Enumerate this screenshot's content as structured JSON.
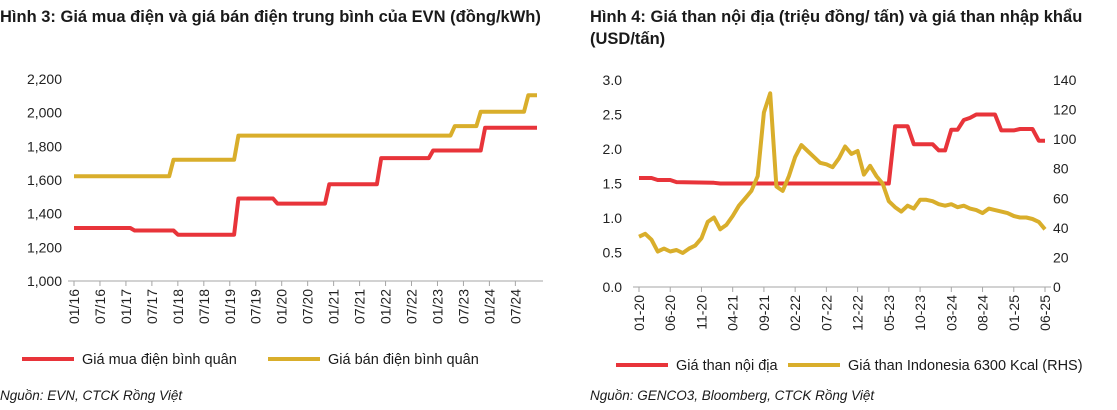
{
  "colors": {
    "red": "#e8343a",
    "gold": "#d9ae2b",
    "axis": "#a6a6a6"
  },
  "left": {
    "title": "Hình 3: Giá mua điện và giá bán điện trung bình của EVN (đồng/kWh)",
    "source": "Nguồn: EVN, CTCK Rồng Việt",
    "chart_data": {
      "type": "line",
      "ylim": [
        1000,
        2200
      ],
      "yticks": [
        "1,000",
        "1,200",
        "1,400",
        "1,600",
        "1,800",
        "2,000",
        "2,200"
      ],
      "x_range": [
        "2016-01",
        "2024-12"
      ],
      "categories": [
        "01/16",
        "07/16",
        "01/17",
        "07/17",
        "01/18",
        "07/18",
        "01/19",
        "07/19",
        "01/20",
        "07/20",
        "01/21",
        "07/21",
        "01/22",
        "07/22",
        "01/23",
        "07/23",
        "01/24",
        "07/24"
      ],
      "series": [
        {
          "name": "Giá mua điện bình quân",
          "color": "#e8343a",
          "points": [
            [
              "2016-01",
              1315
            ],
            [
              "2017-02",
              1315
            ],
            [
              "2017-03",
              1300
            ],
            [
              "2017-12",
              1300
            ],
            [
              "2018-01",
              1275
            ],
            [
              "2019-02",
              1275
            ],
            [
              "2019-03",
              1490
            ],
            [
              "2019-11",
              1490
            ],
            [
              "2019-12",
              1460
            ],
            [
              "2020-11",
              1460
            ],
            [
              "2020-12",
              1575
            ],
            [
              "2021-11",
              1575
            ],
            [
              "2021-12",
              1730
            ],
            [
              "2022-11",
              1730
            ],
            [
              "2022-12",
              1775
            ],
            [
              "2023-11",
              1775
            ],
            [
              "2023-12",
              1910
            ],
            [
              "2024-12",
              1910
            ]
          ]
        },
        {
          "name": "Giá bán điện bình quân",
          "color": "#d9ae2b",
          "points": [
            [
              "2016-01",
              1622
            ],
            [
              "2017-11",
              1622
            ],
            [
              "2017-12",
              1720
            ],
            [
              "2019-02",
              1720
            ],
            [
              "2019-03",
              1864
            ],
            [
              "2023-04",
              1864
            ],
            [
              "2023-05",
              1920
            ],
            [
              "2023-10",
              1920
            ],
            [
              "2023-11",
              2006
            ],
            [
              "2024-09",
              2006
            ],
            [
              "2024-10",
              2103
            ],
            [
              "2024-12",
              2103
            ]
          ]
        }
      ]
    }
  },
  "right": {
    "title": "Hình 4: Giá than nội địa (triệu đồng/ tấn) và giá than nhập khẩu (USD/tấn)",
    "source": "Nguồn: GENCO3, Bloomberg, CTCK Rồng Việt",
    "chart_data": {
      "type": "line",
      "ylim": [
        0,
        3.0
      ],
      "yticks": [
        "0.0",
        "0.5",
        "1.0",
        "1.5",
        "2.0",
        "2.5",
        "3.0"
      ],
      "y2lim": [
        0,
        140
      ],
      "y2ticks": [
        "0",
        "20",
        "40",
        "60",
        "80",
        "100",
        "120",
        "140"
      ],
      "x_range": [
        "2020-01",
        "2025-06"
      ],
      "categories": [
        "01-20",
        "06-20",
        "11-20",
        "04-21",
        "09-21",
        "02-22",
        "07-22",
        "12-22",
        "05-23",
        "10-23",
        "03-24",
        "08-24",
        "01-25",
        "06-25"
      ],
      "series": [
        {
          "name": "Giá than nội địa",
          "color": "#e8343a",
          "axis": "left",
          "points": [
            [
              "2020-01",
              1.58
            ],
            [
              "2020-03",
              1.58
            ],
            [
              "2020-04",
              1.55
            ],
            [
              "2020-06",
              1.55
            ],
            [
              "2020-07",
              1.52
            ],
            [
              "2021-01",
              1.51
            ],
            [
              "2021-02",
              1.5
            ],
            [
              "2023-05",
              1.5
            ],
            [
              "2023-06",
              2.33
            ],
            [
              "2023-08",
              2.33
            ],
            [
              "2023-09",
              2.07
            ],
            [
              "2023-12",
              2.07
            ],
            [
              "2024-01",
              1.98
            ],
            [
              "2024-02",
              1.98
            ],
            [
              "2024-03",
              2.28
            ],
            [
              "2024-04",
              2.28
            ],
            [
              "2024-05",
              2.42
            ],
            [
              "2024-06",
              2.45
            ],
            [
              "2024-07",
              2.5
            ],
            [
              "2024-10",
              2.5
            ],
            [
              "2024-11",
              2.27
            ],
            [
              "2025-01",
              2.27
            ],
            [
              "2025-02",
              2.29
            ],
            [
              "2025-04",
              2.29
            ],
            [
              "2025-05",
              2.12
            ],
            [
              "2025-06",
              2.12
            ]
          ]
        },
        {
          "name": "Giá than Indonesia 6300 Kcal (RHS)",
          "color": "#d9ae2b",
          "axis": "right",
          "points": [
            [
              "2020-01",
              34
            ],
            [
              "2020-02",
              36
            ],
            [
              "2020-03",
              32
            ],
            [
              "2020-04",
              24
            ],
            [
              "2020-05",
              26
            ],
            [
              "2020-06",
              24
            ],
            [
              "2020-07",
              25
            ],
            [
              "2020-08",
              23
            ],
            [
              "2020-09",
              26
            ],
            [
              "2020-10",
              28
            ],
            [
              "2020-11",
              33
            ],
            [
              "2020-12",
              44
            ],
            [
              "2021-01",
              47
            ],
            [
              "2021-02",
              39
            ],
            [
              "2021-03",
              42
            ],
            [
              "2021-04",
              48
            ],
            [
              "2021-05",
              55
            ],
            [
              "2021-06",
              60
            ],
            [
              "2021-07",
              65
            ],
            [
              "2021-08",
              75
            ],
            [
              "2021-09",
              118
            ],
            [
              "2021-10",
              131
            ],
            [
              "2021-11",
              68
            ],
            [
              "2021-12",
              65
            ],
            [
              "2022-01",
              75
            ],
            [
              "2022-02",
              88
            ],
            [
              "2022-03",
              96
            ],
            [
              "2022-04",
              92
            ],
            [
              "2022-05",
              88
            ],
            [
              "2022-06",
              84
            ],
            [
              "2022-07",
              83
            ],
            [
              "2022-08",
              81
            ],
            [
              "2022-09",
              87
            ],
            [
              "2022-10",
              95
            ],
            [
              "2022-11",
              90
            ],
            [
              "2022-12",
              92
            ],
            [
              "2023-01",
              76
            ],
            [
              "2023-02",
              82
            ],
            [
              "2023-03",
              75
            ],
            [
              "2023-04",
              70
            ],
            [
              "2023-05",
              58
            ],
            [
              "2023-06",
              54
            ],
            [
              "2023-07",
              51
            ],
            [
              "2023-08",
              55
            ],
            [
              "2023-09",
              53
            ],
            [
              "2023-10",
              59
            ],
            [
              "2023-11",
              59
            ],
            [
              "2023-12",
              58
            ],
            [
              "2024-01",
              56
            ],
            [
              "2024-02",
              55
            ],
            [
              "2024-03",
              56
            ],
            [
              "2024-04",
              54
            ],
            [
              "2024-05",
              55
            ],
            [
              "2024-06",
              53
            ],
            [
              "2024-07",
              52
            ],
            [
              "2024-08",
              50
            ],
            [
              "2024-09",
              53
            ],
            [
              "2024-10",
              52
            ],
            [
              "2024-11",
              51
            ],
            [
              "2024-12",
              50
            ],
            [
              "2025-01",
              48
            ],
            [
              "2025-02",
              47
            ],
            [
              "2025-03",
              47
            ],
            [
              "2025-04",
              46
            ],
            [
              "2025-05",
              44
            ],
            [
              "2025-06",
              39
            ]
          ]
        }
      ]
    }
  }
}
